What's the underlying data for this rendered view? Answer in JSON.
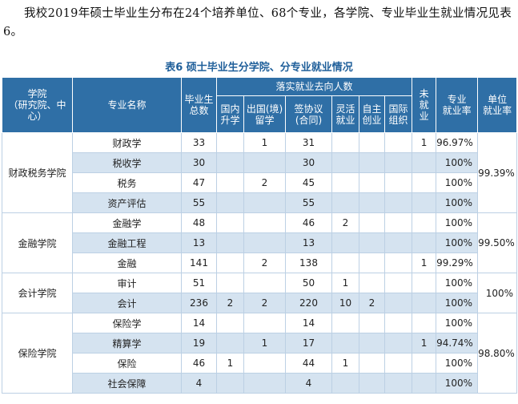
{
  "intro": "我校2019年硕士毕业生分布在24个培养单位、68个专业，各学院、专业毕业生就业情况见表6。",
  "caption": "表6  硕士毕业生分学院、分专业就业情况",
  "headers": {
    "college": "学院\n（研究院、中心）",
    "major": "专业名称",
    "total": "毕业生\n总数",
    "group": "落实就业去向人数",
    "domestic": "国内\n升学",
    "abroad": "出国(境)\n留学",
    "contract": "签协议\n(合同)",
    "flexible": "灵活\n就业",
    "self": "自主\n创业",
    "intl": "国际\n组织",
    "unemployed": "未\n就\n业",
    "major_rate": "专业\n就业率",
    "unit_rate": "单位\n就业率"
  },
  "groups": [
    {
      "college": "财政税务学院",
      "unit_rate": "99.39%",
      "rows": [
        {
          "major": "财政学",
          "total": "33",
          "domestic": "",
          "abroad": "1",
          "contract": "31",
          "flexible": "",
          "self": "",
          "intl": "",
          "unemployed": "1",
          "rate": "96.97%"
        },
        {
          "major": "税收学",
          "total": "30",
          "domestic": "",
          "abroad": "",
          "contract": "30",
          "flexible": "",
          "self": "",
          "intl": "",
          "unemployed": "",
          "rate": "100%"
        },
        {
          "major": "税务",
          "total": "47",
          "domestic": "",
          "abroad": "2",
          "contract": "45",
          "flexible": "",
          "self": "",
          "intl": "",
          "unemployed": "",
          "rate": "100%"
        },
        {
          "major": "资产评估",
          "total": "55",
          "domestic": "",
          "abroad": "",
          "contract": "55",
          "flexible": "",
          "self": "",
          "intl": "",
          "unemployed": "",
          "rate": "100%"
        }
      ]
    },
    {
      "college": "金融学院",
      "unit_rate": "99.50%",
      "rows": [
        {
          "major": "金融学",
          "total": "48",
          "domestic": "",
          "abroad": "",
          "contract": "46",
          "flexible": "2",
          "self": "",
          "intl": "",
          "unemployed": "",
          "rate": "100%"
        },
        {
          "major": "金融工程",
          "total": "13",
          "domestic": "",
          "abroad": "",
          "contract": "13",
          "flexible": "",
          "self": "",
          "intl": "",
          "unemployed": "",
          "rate": "100%"
        },
        {
          "major": "金融",
          "total": "141",
          "domestic": "",
          "abroad": "2",
          "contract": "138",
          "flexible": "",
          "self": "",
          "intl": "",
          "unemployed": "1",
          "rate": "99.29%"
        }
      ]
    },
    {
      "college": "会计学院",
      "unit_rate": "100%",
      "rows": [
        {
          "major": "审计",
          "total": "51",
          "domestic": "",
          "abroad": "",
          "contract": "50",
          "flexible": "1",
          "self": "",
          "intl": "",
          "unemployed": "",
          "rate": "100%"
        },
        {
          "major": "会计",
          "total": "236",
          "domestic": "2",
          "abroad": "2",
          "contract": "220",
          "flexible": "10",
          "self": "2",
          "intl": "",
          "unemployed": "",
          "rate": "100%"
        }
      ]
    },
    {
      "college": "保险学院",
      "unit_rate": "98.80%",
      "rows": [
        {
          "major": "保险学",
          "total": "14",
          "domestic": "",
          "abroad": "",
          "contract": "14",
          "flexible": "",
          "self": "",
          "intl": "",
          "unemployed": "",
          "rate": "100%"
        },
        {
          "major": "精算学",
          "total": "19",
          "domestic": "",
          "abroad": "1",
          "contract": "17",
          "flexible": "",
          "self": "",
          "intl": "",
          "unemployed": "1",
          "rate": "94.74%"
        },
        {
          "major": "保险",
          "total": "46",
          "domestic": "1",
          "abroad": "",
          "contract": "44",
          "flexible": "1",
          "self": "",
          "intl": "",
          "unemployed": "",
          "rate": "100%"
        },
        {
          "major": "社会保障",
          "total": "4",
          "domestic": "",
          "abroad": "",
          "contract": "4",
          "flexible": "",
          "self": "",
          "intl": "",
          "unemployed": "",
          "rate": "100%"
        }
      ]
    }
  ]
}
